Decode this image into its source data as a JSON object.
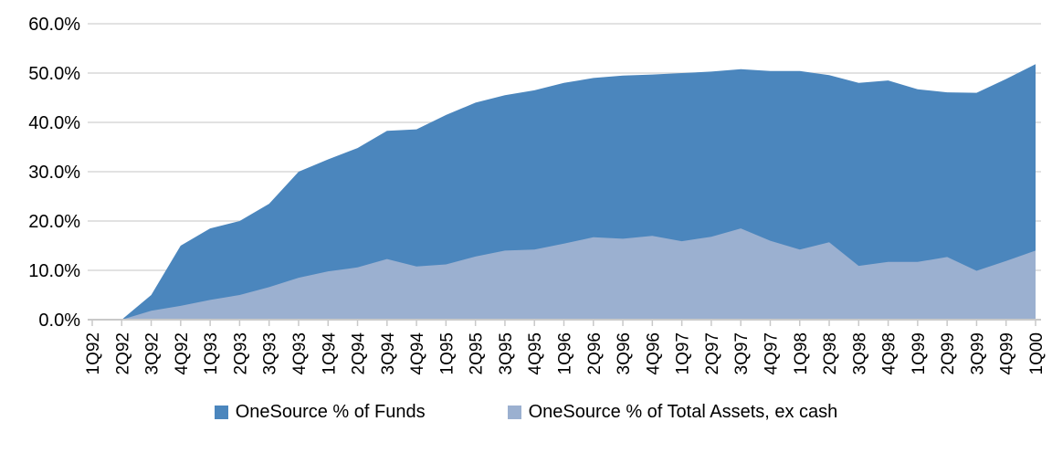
{
  "chart_data": {
    "type": "area",
    "title": "",
    "xlabel": "",
    "ylabel": "",
    "categories": [
      "1Q92",
      "2Q92",
      "3Q92",
      "4Q92",
      "1Q93",
      "2Q93",
      "3Q93",
      "4Q93",
      "1Q94",
      "2Q94",
      "3Q94",
      "4Q94",
      "1Q95",
      "2Q95",
      "3Q95",
      "4Q95",
      "1Q96",
      "2Q96",
      "3Q96",
      "4Q96",
      "1Q97",
      "2Q97",
      "3Q97",
      "4Q97",
      "1Q98",
      "2Q98",
      "3Q98",
      "4Q98",
      "1Q99",
      "2Q99",
      "3Q99",
      "4Q99",
      "1Q00"
    ],
    "series": [
      {
        "name": "OneSource % of Funds",
        "color": "#4B86BD",
        "values": [
          0,
          0,
          5,
          15,
          18.5,
          20,
          23.5,
          30,
          32.5,
          34.8,
          38.3,
          38.6,
          41.5,
          44,
          45.5,
          46.5,
          48,
          49,
          49.5,
          49.7,
          50,
          50.3,
          50.8,
          50.4,
          50.4,
          49.6,
          48,
          48.5,
          46.7,
          46.1,
          46,
          48.8,
          51.8
        ]
      },
      {
        "name": "OneSource % of Total Assets, ex cash",
        "color": "#9BB0D0",
        "values": [
          0,
          0,
          1.8,
          2.8,
          4,
          5,
          6.6,
          8.5,
          9.8,
          10.6,
          12.3,
          10.8,
          11.2,
          12.8,
          14,
          14.2,
          15.4,
          16.7,
          16.4,
          17,
          15.9,
          16.8,
          18.5,
          16,
          14.2,
          15.7,
          10.9,
          11.7,
          11.7,
          12.7,
          9.9,
          11.9,
          14
        ]
      }
    ],
    "ylim": [
      0,
      60
    ],
    "y_tick_labels": [
      "0.0%",
      "10.0%",
      "20.0%",
      "30.0%",
      "40.0%",
      "50.0%",
      "60.0%"
    ],
    "grid": true,
    "gridline_color": "#D9D9D9",
    "axis_color": "#C9C9C9",
    "text_color": "#000000",
    "legend_position": "bottom",
    "x_labels_rotated": true
  }
}
